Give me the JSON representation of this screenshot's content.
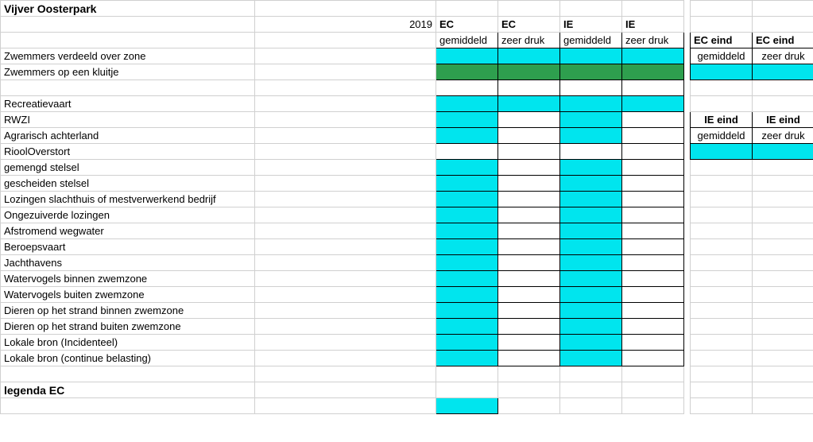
{
  "colors": {
    "cyan": "#00e5ee",
    "green": "#2e9f4e",
    "white": "#ffffff",
    "grid": "#d0d0d0",
    "black": "#000000"
  },
  "title": "Vijver Oosterpark",
  "year": "2019",
  "main_cols": [
    {
      "top": "EC",
      "sub": "gemiddeld"
    },
    {
      "top": "EC",
      "sub": "zeer druk"
    },
    {
      "top": "IE",
      "sub": "gemiddeld"
    },
    {
      "top": "IE",
      "sub": "zeer druk"
    }
  ],
  "side_ec": {
    "top": "EC eind",
    "gem": "gemiddeld",
    "zd": "zeer druk"
  },
  "side_ie": {
    "top": "IE eind",
    "gem": "gemiddeld",
    "zd": "zeer druk"
  },
  "rows": [
    {
      "label": "Zwemmers verdeeld over zone",
      "c": [
        "cyan",
        "cyan",
        "cyan",
        "cyan"
      ]
    },
    {
      "label": "Zwemmers op een kluitje",
      "c": [
        "green",
        "green",
        "green",
        "green"
      ]
    },
    {
      "label": "",
      "c": [
        "white",
        "white",
        "white",
        "white"
      ],
      "blank": true
    },
    {
      "label": "Recreatievaart",
      "c": [
        "cyan",
        "cyan",
        "cyan",
        "cyan"
      ]
    },
    {
      "label": "RWZI",
      "c": [
        "cyan",
        "white",
        "cyan",
        "white"
      ]
    },
    {
      "label": "Agrarisch achterland",
      "c": [
        "cyan",
        "white",
        "cyan",
        "white"
      ]
    },
    {
      "label": "RioolOverstort",
      "c": [
        "white",
        "white",
        "white",
        "white"
      ]
    },
    {
      "label": "gemengd stelsel",
      "c": [
        "cyan",
        "white",
        "cyan",
        "white"
      ]
    },
    {
      "label": "gescheiden stelsel",
      "c": [
        "cyan",
        "white",
        "cyan",
        "white"
      ]
    },
    {
      "label": "Lozingen slachthuis of mestverwerkend bedrijf",
      "c": [
        "cyan",
        "white",
        "cyan",
        "white"
      ]
    },
    {
      "label": "Ongezuiverde lozingen",
      "c": [
        "cyan",
        "white",
        "cyan",
        "white"
      ]
    },
    {
      "label": "Afstromend wegwater",
      "c": [
        "cyan",
        "white",
        "cyan",
        "white"
      ]
    },
    {
      "label": "Beroepsvaart",
      "c": [
        "cyan",
        "white",
        "cyan",
        "white"
      ]
    },
    {
      "label": "Jachthavens",
      "c": [
        "cyan",
        "white",
        "cyan",
        "white"
      ]
    },
    {
      "label": "Watervogels binnen zwemzone",
      "c": [
        "cyan",
        "white",
        "cyan",
        "white"
      ]
    },
    {
      "label": "Watervogels buiten zwemzone",
      "c": [
        "cyan",
        "white",
        "cyan",
        "white"
      ]
    },
    {
      "label": "Dieren op het strand binnen zwemzone",
      "c": [
        "cyan",
        "white",
        "cyan",
        "white"
      ]
    },
    {
      "label": "Dieren op het strand buiten zwemzone",
      "c": [
        "cyan",
        "white",
        "cyan",
        "white"
      ]
    },
    {
      "label": "Lokale bron (Incidenteel)",
      "c": [
        "cyan",
        "white",
        "cyan",
        "white"
      ]
    },
    {
      "label": "Lokale bron (continue belasting)",
      "c": [
        "cyan",
        "white",
        "cyan",
        "white"
      ]
    }
  ],
  "legend_title": "legenda EC"
}
